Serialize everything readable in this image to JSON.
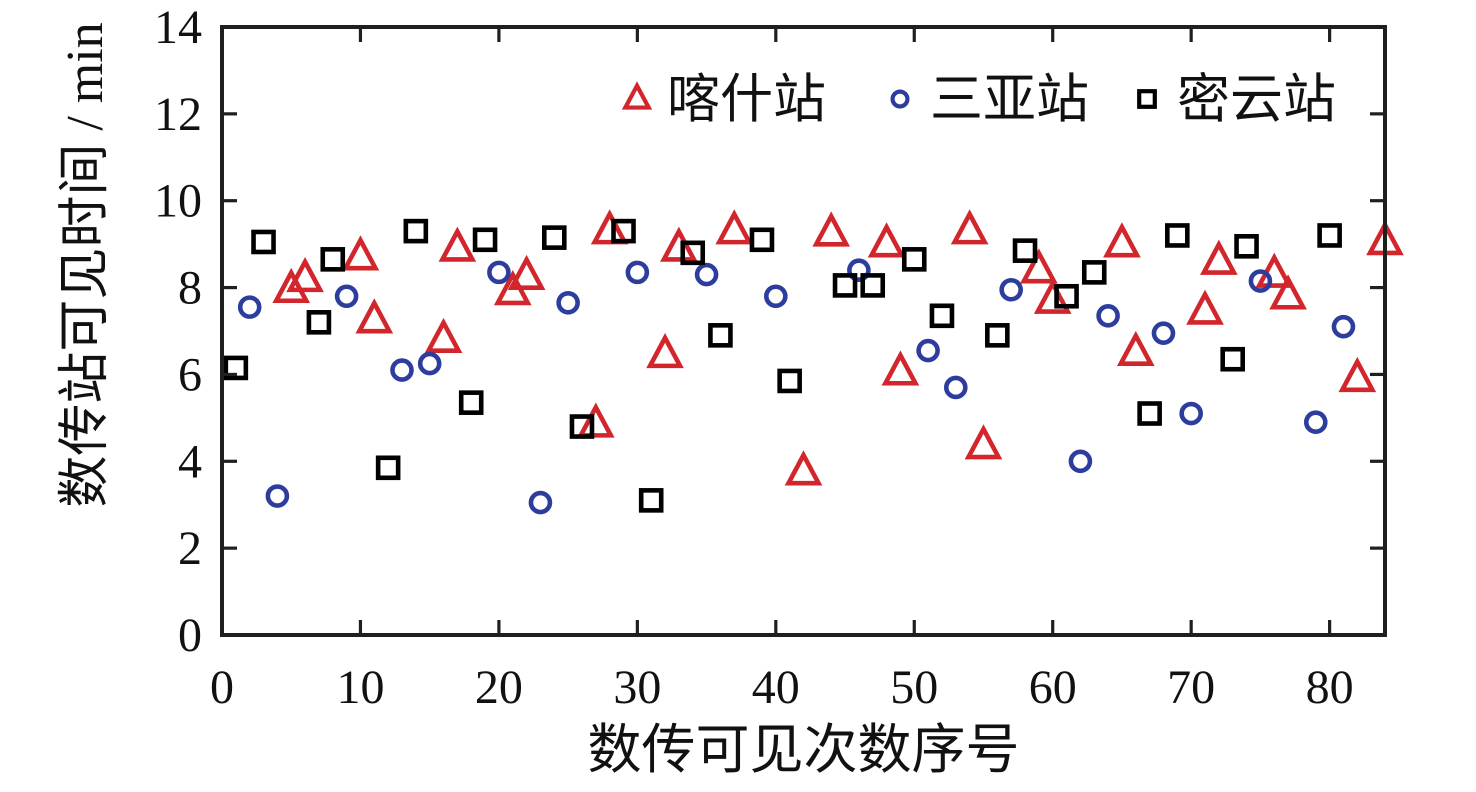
{
  "chart_data": {
    "type": "scatter",
    "title": "",
    "xlabel": "数传可见次数序号",
    "ylabel": "数传站可见时间 / min",
    "xlim": [
      0,
      84
    ],
    "ylim": [
      0,
      14
    ],
    "x_ticks": [
      0,
      10,
      20,
      30,
      40,
      50,
      60,
      70,
      80
    ],
    "y_ticks": [
      0,
      2,
      4,
      6,
      8,
      10,
      12,
      14
    ],
    "grid": false,
    "legend_position": "top-inside",
    "axis_color": "#1f1f1f",
    "series": [
      {
        "name": "喀什站",
        "marker": "triangle",
        "color": "#d2262c",
        "points": [
          [
            5,
            7.95
          ],
          [
            6,
            8.2
          ],
          [
            10,
            8.7
          ],
          [
            11,
            7.25
          ],
          [
            16,
            6.8
          ],
          [
            17,
            8.9
          ],
          [
            21,
            7.9
          ],
          [
            22,
            8.25
          ],
          [
            27,
            4.85
          ],
          [
            28,
            9.3
          ],
          [
            32,
            6.45
          ],
          [
            33,
            8.9
          ],
          [
            37,
            9.3
          ],
          [
            42,
            3.75
          ],
          [
            44,
            9.25
          ],
          [
            48,
            9.0
          ],
          [
            49,
            6.05
          ],
          [
            54,
            9.3
          ],
          [
            55,
            4.35
          ],
          [
            59,
            8.4
          ],
          [
            60,
            7.7
          ],
          [
            65,
            9.0
          ],
          [
            66,
            6.5
          ],
          [
            71,
            7.45
          ],
          [
            72,
            8.6
          ],
          [
            76,
            8.3
          ],
          [
            77,
            7.8
          ],
          [
            82,
            5.9
          ],
          [
            84,
            9.05
          ]
        ]
      },
      {
        "name": "三亚站",
        "marker": "circle",
        "color": "#2d3d9e",
        "points": [
          [
            2,
            7.55
          ],
          [
            4,
            3.2
          ],
          [
            9,
            7.8
          ],
          [
            13,
            6.1
          ],
          [
            15,
            6.25
          ],
          [
            20,
            8.35
          ],
          [
            23,
            3.05
          ],
          [
            25,
            7.65
          ],
          [
            30,
            8.35
          ],
          [
            35,
            8.3
          ],
          [
            40,
            7.8
          ],
          [
            46,
            8.4
          ],
          [
            51,
            6.55
          ],
          [
            53,
            5.7
          ],
          [
            57,
            7.95
          ],
          [
            62,
            4.0
          ],
          [
            64,
            7.35
          ],
          [
            68,
            6.95
          ],
          [
            70,
            5.1
          ],
          [
            75,
            8.15
          ],
          [
            79,
            4.9
          ],
          [
            81,
            7.1
          ]
        ]
      },
      {
        "name": "密云站",
        "marker": "square",
        "color": "#000000",
        "points": [
          [
            1,
            6.15
          ],
          [
            3,
            9.05
          ],
          [
            7,
            7.2
          ],
          [
            8,
            8.65
          ],
          [
            12,
            3.85
          ],
          [
            14,
            9.3
          ],
          [
            18,
            5.35
          ],
          [
            19,
            9.1
          ],
          [
            24,
            9.15
          ],
          [
            26,
            4.8
          ],
          [
            29,
            9.3
          ],
          [
            31,
            3.1
          ],
          [
            34,
            8.8
          ],
          [
            36,
            6.9
          ],
          [
            39,
            9.1
          ],
          [
            41,
            5.85
          ],
          [
            45,
            8.05
          ],
          [
            47,
            8.05
          ],
          [
            50,
            8.65
          ],
          [
            52,
            7.35
          ],
          [
            56,
            6.9
          ],
          [
            58,
            8.85
          ],
          [
            61,
            7.8
          ],
          [
            63,
            8.35
          ],
          [
            67,
            5.1
          ],
          [
            69,
            9.2
          ],
          [
            73,
            6.35
          ],
          [
            74,
            8.95
          ],
          [
            80,
            9.2
          ]
        ]
      }
    ]
  }
}
